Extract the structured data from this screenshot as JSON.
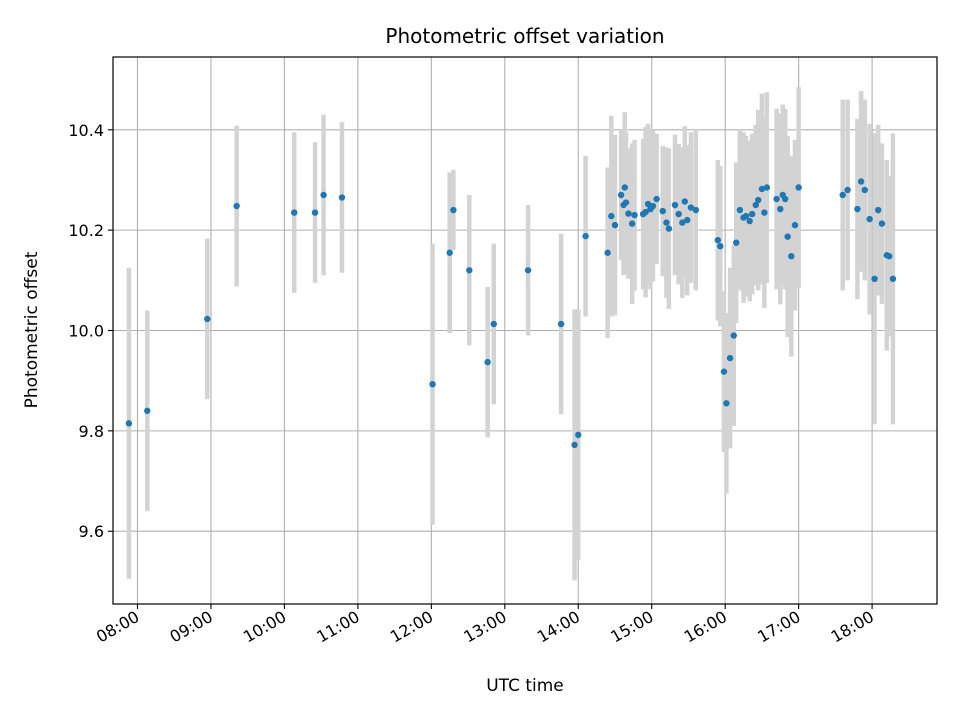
{
  "chart_data": {
    "type": "scatter",
    "title": "Photometric offset variation",
    "xlabel": "UTC time",
    "ylabel": "Photometric offset",
    "x_unit": "UTC time (HH:MM)",
    "xlim": [
      "07:40",
      "18:53"
    ],
    "ylim": [
      9.455,
      10.545
    ],
    "x_ticks": [
      "08:00",
      "09:00",
      "10:00",
      "11:00",
      "12:00",
      "13:00",
      "14:00",
      "15:00",
      "16:00",
      "17:00",
      "18:00"
    ],
    "y_ticks": [
      9.6,
      9.8,
      10.0,
      10.2,
      10.4
    ],
    "y_tick_labels": [
      "9.6",
      "9.8",
      "10.0",
      "10.2",
      "10.4"
    ],
    "grid": true,
    "legend": "none",
    "colors": {
      "points": "#1f77b4",
      "errorbars": "#d3d3d3",
      "grid": "#b0b0b0"
    },
    "series": [
      {
        "x": [
          "07:53",
          "08:08",
          "08:57",
          "09:21",
          "10:08",
          "10:25",
          "10:32",
          "10:47",
          "12:01",
          "12:15",
          "12:18",
          "12:31",
          "12:46",
          "12:51",
          "13:19",
          "13:46",
          "13:57",
          "14:00",
          "14:06",
          "14:24",
          "14:27",
          "14:30",
          "14:35",
          "14:37",
          "14:38",
          "14:39",
          "14:41",
          "14:44",
          "14:46",
          "14:53",
          "14:55",
          "14:57",
          "14:59",
          "15:01",
          "15:04",
          "15:09",
          "15:12",
          "15:14",
          "15:19",
          "15:22",
          "15:25",
          "15:27",
          "15:29",
          "15:32",
          "15:36",
          "15:54",
          "15:56",
          "15:59",
          "16:01",
          "16:04",
          "16:07",
          "16:09",
          "16:12",
          "16:15",
          "16:17",
          "16:20",
          "16:22",
          "16:25",
          "16:27",
          "16:30",
          "16:32",
          "16:34",
          "16:42",
          "16:45",
          "16:47",
          "16:49",
          "16:51",
          "16:54",
          "16:57",
          "17:00",
          "17:36",
          "17:40",
          "17:48",
          "17:51",
          "17:54",
          "17:58",
          "18:02",
          "18:05",
          "18:08",
          "18:12",
          "18:14",
          "18:17"
        ],
        "y": [
          9.815,
          9.84,
          10.023,
          10.248,
          10.235,
          10.235,
          10.27,
          10.265,
          9.893,
          10.155,
          10.24,
          10.12,
          9.937,
          10.013,
          10.12,
          10.013,
          9.772,
          9.792,
          10.188,
          10.155,
          10.228,
          10.21,
          10.27,
          10.25,
          10.285,
          10.255,
          10.233,
          10.213,
          10.23,
          10.232,
          10.236,
          10.252,
          10.242,
          10.248,
          10.262,
          10.238,
          10.215,
          10.203,
          10.25,
          10.232,
          10.215,
          10.257,
          10.22,
          10.245,
          10.24,
          10.18,
          10.168,
          9.918,
          9.855,
          9.945,
          9.99,
          10.175,
          10.24,
          10.225,
          10.228,
          10.218,
          10.232,
          10.25,
          10.26,
          10.282,
          10.235,
          10.285,
          10.262,
          10.242,
          10.27,
          10.262,
          10.187,
          10.148,
          10.21,
          10.285,
          10.27,
          10.28,
          10.242,
          10.297,
          10.28,
          10.222,
          10.103,
          10.24,
          10.213,
          10.15,
          10.148,
          10.103
        ],
        "y_err": [
          0.31,
          0.2,
          0.16,
          0.16,
          0.16,
          0.14,
          0.16,
          0.15,
          0.28,
          0.16,
          0.08,
          0.15,
          0.15,
          0.16,
          0.13,
          0.18,
          0.27,
          0.25,
          0.16,
          0.17,
          0.2,
          0.18,
          0.13,
          0.14,
          0.15,
          0.14,
          0.13,
          0.16,
          0.15,
          0.15,
          0.17,
          0.16,
          0.16,
          0.15,
          0.13,
          0.13,
          0.15,
          0.16,
          0.14,
          0.14,
          0.15,
          0.15,
          0.15,
          0.15,
          0.16,
          0.16,
          0.16,
          0.16,
          0.18,
          0.18,
          0.18,
          0.16,
          0.16,
          0.17,
          0.16,
          0.16,
          0.16,
          0.16,
          0.18,
          0.19,
          0.19,
          0.19,
          0.18,
          0.19,
          0.18,
          0.18,
          0.2,
          0.2,
          0.17,
          0.2,
          0.19,
          0.18,
          0.18,
          0.18,
          0.18,
          0.19,
          0.29,
          0.17,
          0.16,
          0.19,
          0.16,
          0.29
        ]
      }
    ]
  }
}
